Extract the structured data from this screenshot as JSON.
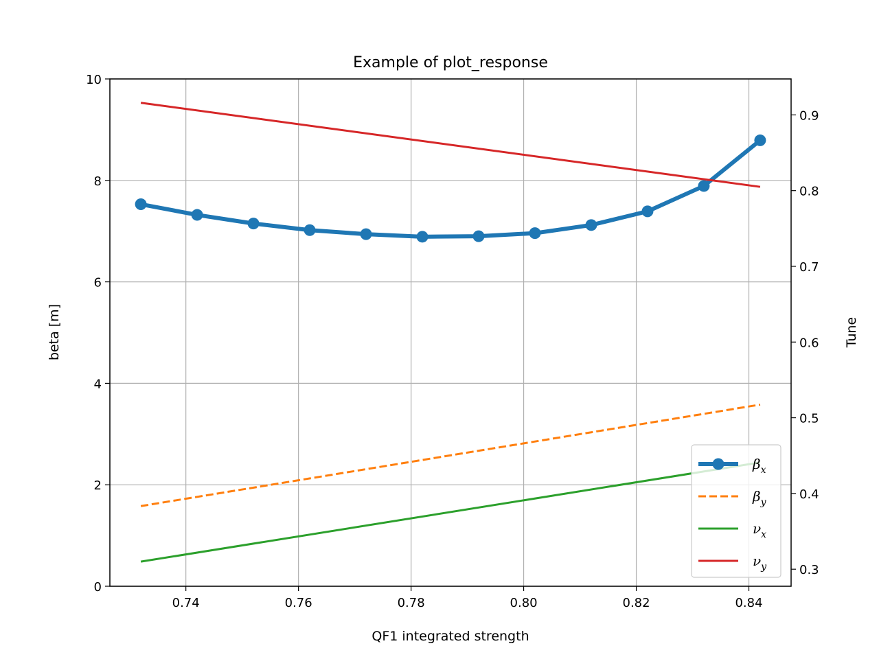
{
  "chart_data": {
    "type": "line",
    "title": "Example of plot_response",
    "xlabel": "QF1 integrated strength",
    "ylabel": "beta [m]",
    "y2label": "Tune",
    "xlim": [
      0.7265,
      0.8475
    ],
    "ylim": [
      0,
      10
    ],
    "y2lim": [
      0.2775,
      0.9475
    ],
    "xticks": [
      0.74,
      0.76,
      0.78,
      0.8,
      0.82,
      0.84
    ],
    "xtick_labels": [
      "0.74",
      "0.76",
      "0.78",
      "0.80",
      "0.82",
      "0.84"
    ],
    "yticks": [
      0,
      2,
      4,
      6,
      8,
      10
    ],
    "ytick_labels": [
      "0",
      "2",
      "4",
      "6",
      "8",
      "10"
    ],
    "y2ticks": [
      0.3,
      0.4,
      0.5,
      0.6,
      0.7,
      0.8,
      0.9
    ],
    "y2tick_labels": [
      "0.3",
      "0.4",
      "0.5",
      "0.6",
      "0.7",
      "0.8",
      "0.9"
    ],
    "grid": true,
    "legend_position": "lower-right",
    "x": [
      0.732,
      0.742,
      0.752,
      0.762,
      0.772,
      0.782,
      0.792,
      0.802,
      0.812,
      0.822,
      0.832,
      0.842
    ],
    "series": [
      {
        "name": "βx",
        "base": "β",
        "sub": "x",
        "axis": "left",
        "color": "#1f77b4",
        "style": "solid-markers",
        "values": [
          7.53,
          7.32,
          7.15,
          7.02,
          6.94,
          6.89,
          6.9,
          6.96,
          7.12,
          7.39,
          7.89,
          8.79
        ]
      },
      {
        "name": "βy",
        "base": "β",
        "sub": "y",
        "axis": "left",
        "color": "#ff7f0e",
        "style": "dashed",
        "x": [
          0.732,
          0.842
        ],
        "values": [
          1.58,
          3.58
        ]
      },
      {
        "name": "νx",
        "base": "ν",
        "sub": "x",
        "axis": "right",
        "color": "#2ca02c",
        "style": "solid",
        "x": [
          0.732,
          0.842
        ],
        "values": [
          0.31,
          0.441
        ]
      },
      {
        "name": "νy",
        "base": "ν",
        "sub": "y",
        "axis": "right",
        "color": "#d62728",
        "style": "solid",
        "x": [
          0.732,
          0.842
        ],
        "values": [
          0.916,
          0.805
        ]
      }
    ]
  }
}
